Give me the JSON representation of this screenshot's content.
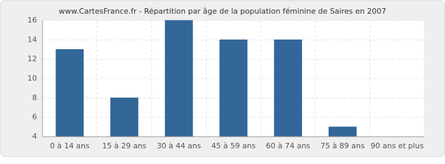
{
  "chart_data": {
    "type": "bar",
    "title": "www.CartesFrance.fr - Répartition par âge de la population féminine de Saires en 2007",
    "categories": [
      "0 à 14 ans",
      "15 à 29 ans",
      "30 à 44 ans",
      "45 à 59 ans",
      "60 à 74 ans",
      "75 à 89 ans",
      "90 ans et plus"
    ],
    "values": [
      13,
      8,
      16,
      14,
      14,
      5,
      4
    ],
    "color": "#336699",
    "ylim": [
      4,
      16
    ],
    "yticks": [
      4,
      6,
      8,
      10,
      12,
      14,
      16
    ],
    "grid": true
  }
}
